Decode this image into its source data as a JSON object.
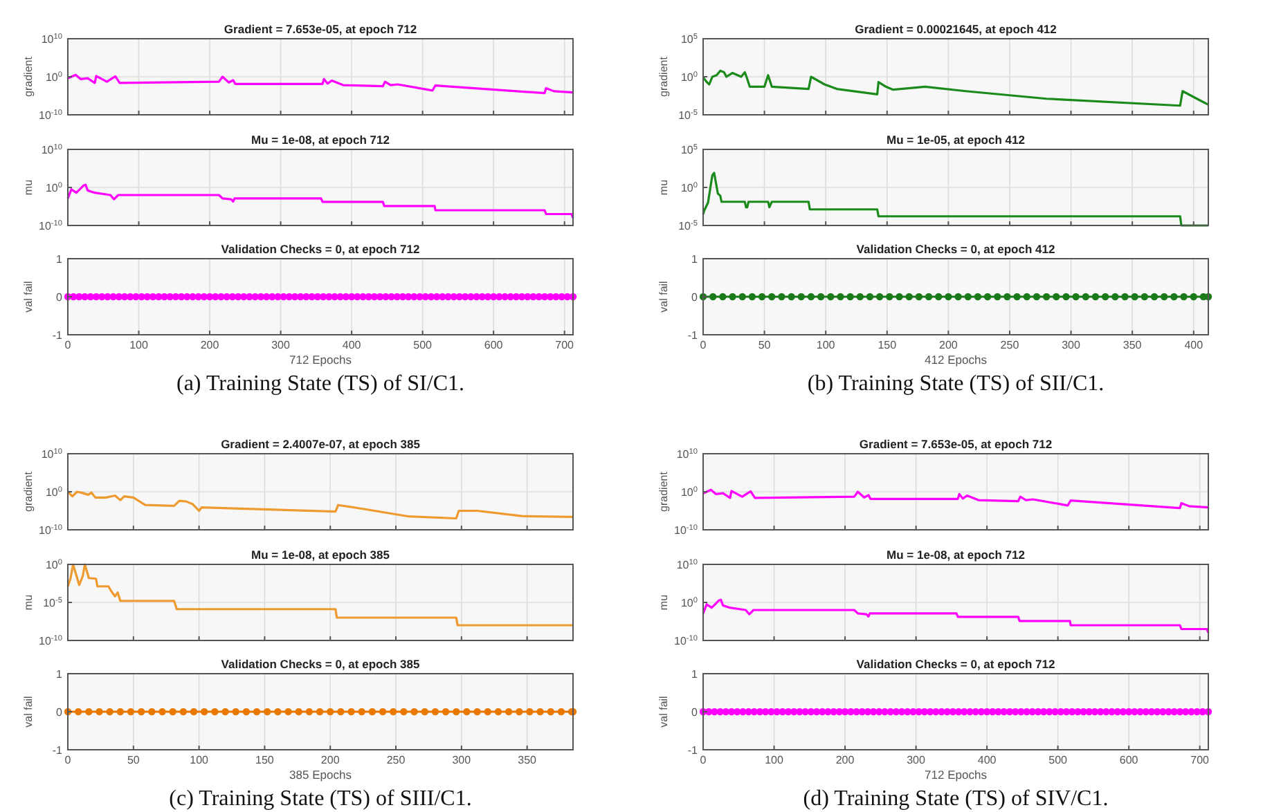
{
  "chart_data": [
    {
      "type": "line",
      "title": "Gradient = 7.653e-05, at epoch 712",
      "ylabel": "gradient",
      "log": true,
      "grid": true,
      "tick_labels": "y",
      "xlim": [
        0,
        712
      ],
      "xticks": [
        0,
        100,
        200,
        300,
        400,
        500,
        600,
        700
      ],
      "ylim": [
        1e-10,
        10000000000.0
      ],
      "yticks": [
        {
          "value": 1e-10,
          "label": "10$^{-10}$"
        },
        {
          "value": 1,
          "label": "10$^{0}$"
        },
        {
          "value": 10000000000.0,
          "label": "10$^{10}$"
        }
      ],
      "x": [
        0,
        11,
        18,
        28,
        38,
        40,
        55,
        67,
        73,
        213,
        218,
        227,
        233,
        236,
        359,
        361,
        366,
        372,
        388,
        444,
        447,
        455,
        465,
        514,
        518,
        672,
        674,
        685,
        712
      ],
      "series": [
        {
          "color": "#ff00ff",
          "values": [
            0.4,
            3.2,
            0.25,
            0.4,
            0.025,
            1.6,
            0.05,
            1.3,
            0.025,
            0.05,
            1,
            0.032,
            0.13,
            0.013,
            0.013,
            0.25,
            0.016,
            0.1,
            0.0063,
            0.0032,
            0.05,
            0.0063,
            0.01,
            0.00025,
            0.005,
            5e-05,
            0.001,
            0.00016,
            7.653e-05
          ]
        }
      ]
    },
    {
      "type": "line",
      "title": "Mu = 1e-08, at epoch 712",
      "ylabel": "mu",
      "log": true,
      "grid": true,
      "tick_labels": "y",
      "xlim": [
        0,
        712
      ],
      "xticks": [
        0,
        100,
        200,
        300,
        400,
        500,
        600,
        700
      ],
      "ylim": [
        1e-10,
        10000000000.0
      ],
      "yticks": [
        {
          "value": 1e-10,
          "label": "10$^{-10}$"
        },
        {
          "value": 1,
          "label": "10$^{0}$"
        },
        {
          "value": 10000000000.0,
          "label": "10$^{10}$"
        }
      ],
      "x": [
        0,
        5,
        12,
        18,
        22,
        25,
        28,
        38,
        60,
        65,
        71,
        213,
        218,
        230,
        233,
        235,
        357,
        359,
        444,
        446,
        517,
        518,
        672,
        674,
        710,
        712
      ],
      "series": [
        {
          "color": "#ff00ff",
          "values": [
            0.0013,
            0.32,
            0.04,
            0.5,
            3.2,
            5,
            0.16,
            0.04,
            0.01,
            0.0008,
            0.01,
            0.01,
            0.0013,
            0.0008,
            0.0002,
            0.0013,
            0.0013,
            0.00016,
            0.00016,
            1.3e-05,
            1.3e-05,
            1e-06,
            1e-06,
            1e-07,
            1e-07,
            1e-08
          ]
        }
      ]
    },
    {
      "type": "line",
      "title": "Validation Checks = 0, at epoch 712",
      "xlabel": "712 Epochs",
      "ylabel": "val fail",
      "grid": true,
      "marker": "circle",
      "xlim": [
        0,
        712
      ],
      "xticks": [
        0,
        100,
        200,
        300,
        400,
        500,
        600,
        700
      ],
      "ylim": [
        -1,
        1
      ],
      "yticks": [
        -1,
        0,
        1
      ],
      "annotations": [
        "(a) Training State (TS) of  SI/C1."
      ],
      "x": [
        0,
        8,
        16,
        24,
        32,
        40,
        48,
        56,
        64,
        72,
        80,
        88,
        96,
        104,
        112,
        120,
        128,
        136,
        144,
        152,
        160,
        168,
        176,
        184,
        192,
        200,
        208,
        216,
        224,
        232,
        240,
        248,
        256,
        264,
        272,
        280,
        288,
        296,
        304,
        312,
        320,
        328,
        336,
        344,
        352,
        360,
        368,
        376,
        384,
        392,
        400,
        408,
        416,
        424,
        432,
        440,
        448,
        456,
        464,
        472,
        480,
        488,
        496,
        504,
        512,
        520,
        528,
        536,
        544,
        552,
        560,
        568,
        576,
        584,
        592,
        600,
        608,
        616,
        624,
        632,
        640,
        648,
        656,
        664,
        672,
        680,
        688,
        696,
        704,
        712
      ],
      "series": [
        {
          "color": "#ff00ff",
          "values": [
            0,
            0,
            0,
            0,
            0,
            0,
            0,
            0,
            0,
            0,
            0,
            0,
            0,
            0,
            0,
            0,
            0,
            0,
            0,
            0,
            0,
            0,
            0,
            0,
            0,
            0,
            0,
            0,
            0,
            0,
            0,
            0,
            0,
            0,
            0,
            0,
            0,
            0,
            0,
            0,
            0,
            0,
            0,
            0,
            0,
            0,
            0,
            0,
            0,
            0,
            0,
            0,
            0,
            0,
            0,
            0,
            0,
            0,
            0,
            0,
            0,
            0,
            0,
            0,
            0,
            0,
            0,
            0,
            0,
            0,
            0,
            0,
            0,
            0,
            0,
            0,
            0,
            0,
            0,
            0,
            0,
            0,
            0,
            0,
            0,
            0,
            0,
            0,
            0,
            0
          ]
        }
      ]
    },
    {
      "type": "line",
      "title": "Gradient = 0.00021645, at epoch 412",
      "ylabel": "gradient",
      "log": true,
      "grid": true,
      "tick_labels": "y",
      "xlim": [
        0,
        412
      ],
      "xticks": [
        0,
        50,
        100,
        150,
        200,
        250,
        300,
        350,
        400
      ],
      "ylim": [
        1e-05,
        100000.0
      ],
      "yticks": [
        {
          "value": 1e-05,
          "label": "10$^{-5}$"
        },
        {
          "value": 1,
          "label": "10$^{0}$"
        },
        {
          "value": 100000.0,
          "label": "10$^{5}$"
        }
      ],
      "x": [
        0,
        3,
        5,
        7.5,
        11,
        14,
        17,
        19,
        24,
        31,
        34,
        36,
        38,
        50,
        53,
        56,
        86,
        88,
        99,
        109,
        142,
        143,
        149,
        155,
        181,
        214,
        280,
        389,
        391,
        404,
        412
      ],
      "series": [
        {
          "color": "#1a8a1a",
          "values": [
            0.8,
            0.2,
            0.1,
            1,
            1.6,
            6.3,
            4,
            1,
            3.2,
            1,
            4,
            0.5,
            0.05,
            0.05,
            1.6,
            0.05,
            0.025,
            1,
            0.1,
            0.025,
            0.005,
            0.2,
            0.05,
            0.02,
            0.05,
            0.013,
            0.0013,
            0.00016,
            0.013,
            0.001,
            0.00021645
          ]
        }
      ]
    },
    {
      "type": "line",
      "title": "Mu = 1e-05, at epoch 412",
      "ylabel": "mu",
      "log": true,
      "grid": true,
      "tick_labels": "y",
      "xlim": [
        0,
        412
      ],
      "xticks": [
        0,
        50,
        100,
        150,
        200,
        250,
        300,
        350,
        400
      ],
      "ylim": [
        1e-05,
        100000.0
      ],
      "yticks": [
        {
          "value": 1e-05,
          "label": "10$^{-5}$"
        },
        {
          "value": 1,
          "label": "10$^{0}$"
        },
        {
          "value": 100000.0,
          "label": "10$^{5}$"
        }
      ],
      "x": [
        0,
        1,
        4,
        7.5,
        9,
        12,
        14,
        15,
        34,
        35,
        36,
        37,
        53,
        54,
        56,
        86,
        87,
        142,
        143,
        389,
        390,
        412
      ],
      "series": [
        {
          "color": "#1a8a1a",
          "values": [
            0.0003,
            0.001,
            0.01,
            40,
            80,
            0.16,
            0.08,
            0.013,
            0.013,
            0.0025,
            0.0025,
            0.013,
            0.013,
            0.0025,
            0.013,
            0.013,
            0.0013,
            0.0013,
            0.00016,
            0.00016,
            1e-05,
            1e-05
          ]
        }
      ]
    },
    {
      "type": "line",
      "title": "Validation Checks = 0, at epoch 412",
      "xlabel": "412 Epochs",
      "ylabel": "val fail",
      "grid": true,
      "marker": "circle",
      "xlim": [
        0,
        412
      ],
      "xticks": [
        0,
        50,
        100,
        150,
        200,
        250,
        300,
        350,
        400
      ],
      "ylim": [
        -1,
        1
      ],
      "yticks": [
        -1,
        0,
        1
      ],
      "annotations": [
        "(b) Training State (TS) of  SII/C1."
      ],
      "x": [
        0,
        8,
        16,
        24,
        32,
        40,
        48,
        56,
        64,
        72,
        80,
        88,
        96,
        104,
        112,
        120,
        128,
        136,
        144,
        152,
        160,
        168,
        176,
        184,
        192,
        200,
        208,
        216,
        224,
        232,
        240,
        248,
        256,
        264,
        272,
        280,
        288,
        296,
        304,
        312,
        320,
        328,
        336,
        344,
        352,
        360,
        368,
        376,
        384,
        392,
        400,
        408,
        412
      ],
      "series": [
        {
          "color": "#1a7a1a",
          "values": [
            0,
            0,
            0,
            0,
            0,
            0,
            0,
            0,
            0,
            0,
            0,
            0,
            0,
            0,
            0,
            0,
            0,
            0,
            0,
            0,
            0,
            0,
            0,
            0,
            0,
            0,
            0,
            0,
            0,
            0,
            0,
            0,
            0,
            0,
            0,
            0,
            0,
            0,
            0,
            0,
            0,
            0,
            0,
            0,
            0,
            0,
            0,
            0,
            0,
            0,
            0,
            0,
            0
          ]
        }
      ]
    },
    {
      "type": "line",
      "title": "Gradient = 2.4007e-07, at epoch 385",
      "ylabel": "gradient",
      "log": true,
      "grid": true,
      "tick_labels": "y",
      "xlim": [
        0,
        385
      ],
      "xticks": [
        0,
        50,
        100,
        150,
        200,
        250,
        300,
        350
      ],
      "ylim": [
        1e-10,
        10000000000.0
      ],
      "yticks": [
        {
          "value": 1e-10,
          "label": "10$^{-10}$"
        },
        {
          "value": 1,
          "label": "10$^{0}$"
        },
        {
          "value": 10000000000.0,
          "label": "10$^{10}$"
        }
      ],
      "x": [
        0,
        3.5,
        7,
        10,
        15.6,
        18,
        21,
        29,
        36,
        40,
        43,
        50,
        59,
        81,
        85,
        90,
        95,
        100,
        102,
        204,
        206,
        225,
        260,
        296,
        298,
        312,
        346,
        385
      ],
      "series": [
        {
          "color": "#ee9a2e",
          "values": [
            1,
            0.063,
            1,
            0.63,
            0.16,
            0.6,
            0.03,
            0.03,
            0.1,
            0.0063,
            0.063,
            0.03,
            0.00032,
            0.0002,
            0.004,
            0.003,
            0.0006,
            1e-05,
            8e-05,
            6.3e-06,
            0.00032,
            3.2e-05,
            3.2e-07,
            1e-07,
            1e-05,
            1e-05,
            4e-07,
            2.4007e-07
          ]
        }
      ]
    },
    {
      "type": "line",
      "title": "Mu = 1e-08, at epoch 385",
      "ylabel": "mu",
      "log": true,
      "grid": true,
      "tick_labels": "y",
      "xlim": [
        0,
        385
      ],
      "xticks": [
        0,
        50,
        100,
        150,
        200,
        250,
        300,
        350
      ],
      "ylim": [
        1e-10,
        1
      ],
      "yticks": [
        {
          "value": 1e-10,
          "label": "10$^{-10}$"
        },
        {
          "value": 1e-05,
          "label": "10$^{-5}$"
        },
        {
          "value": 1,
          "label": "10$^{0}$"
        }
      ],
      "x": [
        0,
        2,
        4,
        8.7,
        11.4,
        13,
        16,
        21.5,
        22.5,
        31,
        33,
        36,
        38,
        40,
        81,
        83,
        204,
        205,
        296,
        297,
        385
      ],
      "series": [
        {
          "color": "#ee9a2e",
          "values": [
            0.0013,
            0.013,
            1,
            0.002,
            0.03,
            1,
            0.016,
            0.013,
            0.0013,
            0.0013,
            0.00032,
            6.3e-05,
            0.0002,
            1.6e-05,
            1.6e-05,
            1.3e-06,
            1.3e-06,
            1e-07,
            1e-07,
            1e-08,
            1e-08
          ]
        }
      ]
    },
    {
      "type": "line",
      "title": "Validation Checks = 0, at epoch 385",
      "xlabel": "385 Epochs",
      "ylabel": "val fail",
      "grid": true,
      "marker": "circle",
      "xlim": [
        0,
        385
      ],
      "xticks": [
        0,
        50,
        100,
        150,
        200,
        250,
        300,
        350
      ],
      "ylim": [
        -1,
        1
      ],
      "yticks": [
        -1,
        0,
        1
      ],
      "annotations": [
        "(c) Training State (TS) of  SIII/C1."
      ],
      "x": [
        0,
        8,
        16,
        24,
        32,
        40,
        48,
        56,
        64,
        72,
        80,
        88,
        96,
        104,
        112,
        120,
        128,
        136,
        144,
        152,
        160,
        168,
        176,
        184,
        192,
        200,
        208,
        216,
        224,
        232,
        240,
        248,
        256,
        264,
        272,
        280,
        288,
        296,
        304,
        312,
        320,
        328,
        336,
        344,
        352,
        360,
        368,
        376,
        384,
        385
      ],
      "series": [
        {
          "color": "#e87800",
          "values": [
            0,
            0,
            0,
            0,
            0,
            0,
            0,
            0,
            0,
            0,
            0,
            0,
            0,
            0,
            0,
            0,
            0,
            0,
            0,
            0,
            0,
            0,
            0,
            0,
            0,
            0,
            0,
            0,
            0,
            0,
            0,
            0,
            0,
            0,
            0,
            0,
            0,
            0,
            0,
            0,
            0,
            0,
            0,
            0,
            0,
            0,
            0,
            0,
            0,
            0
          ]
        }
      ]
    },
    {
      "type": "line",
      "title": "Gradient = 7.653e-05, at epoch 712",
      "ylabel": "gradient",
      "log": true,
      "grid": true,
      "tick_labels": "y",
      "xlim": [
        0,
        712
      ],
      "xticks": [
        0,
        100,
        200,
        300,
        400,
        500,
        600,
        700
      ],
      "ylim": [
        1e-10,
        10000000000.0
      ],
      "yticks": [
        {
          "value": 1e-10,
          "label": "10$^{-10}$"
        },
        {
          "value": 1,
          "label": "10$^{0}$"
        },
        {
          "value": 10000000000.0,
          "label": "10$^{10}$"
        }
      ],
      "x": [
        0,
        11,
        18,
        28,
        38,
        40,
        55,
        67,
        73,
        213,
        218,
        227,
        233,
        236,
        359,
        361,
        366,
        372,
        388,
        444,
        447,
        455,
        465,
        514,
        518,
        672,
        674,
        685,
        712
      ],
      "series": [
        {
          "color": "#ff00ff",
          "values": [
            0.4,
            3.2,
            0.25,
            0.4,
            0.025,
            1.6,
            0.05,
            1.3,
            0.025,
            0.05,
            1,
            0.032,
            0.13,
            0.013,
            0.013,
            0.25,
            0.016,
            0.1,
            0.0063,
            0.0032,
            0.05,
            0.0063,
            0.01,
            0.00025,
            0.005,
            5e-05,
            0.001,
            0.00016,
            7.653e-05
          ]
        }
      ]
    },
    {
      "type": "line",
      "title": "Mu = 1e-08, at epoch 712",
      "ylabel": "mu",
      "log": true,
      "grid": true,
      "tick_labels": "y",
      "xlim": [
        0,
        712
      ],
      "xticks": [
        0,
        100,
        200,
        300,
        400,
        500,
        600,
        700
      ],
      "ylim": [
        1e-10,
        10000000000.0
      ],
      "yticks": [
        {
          "value": 1e-10,
          "label": "10$^{-10}$"
        },
        {
          "value": 1,
          "label": "10$^{0}$"
        },
        {
          "value": 10000000000.0,
          "label": "10$^{10}$"
        }
      ],
      "x": [
        0,
        5,
        12,
        18,
        22,
        25,
        28,
        38,
        60,
        65,
        71,
        213,
        218,
        230,
        233,
        235,
        357,
        359,
        444,
        446,
        517,
        518,
        672,
        674,
        710,
        712
      ],
      "series": [
        {
          "color": "#ff00ff",
          "values": [
            0.0013,
            0.32,
            0.04,
            0.5,
            3.2,
            5,
            0.16,
            0.04,
            0.01,
            0.0008,
            0.01,
            0.01,
            0.0013,
            0.0008,
            0.0002,
            0.0013,
            0.0013,
            0.00016,
            0.00016,
            1.3e-05,
            1.3e-05,
            1e-06,
            1e-06,
            1e-07,
            1e-07,
            1e-08
          ]
        }
      ]
    },
    {
      "type": "line",
      "title": "Validation Checks = 0, at epoch 712",
      "xlabel": "712 Epochs",
      "ylabel": "val fail",
      "grid": true,
      "marker": "circle",
      "xlim": [
        0,
        712
      ],
      "xticks": [
        0,
        100,
        200,
        300,
        400,
        500,
        600,
        700
      ],
      "ylim": [
        -1,
        1
      ],
      "yticks": [
        -1,
        0,
        1
      ],
      "annotations": [
        "(d) Training State (TS) of  SIV/C1."
      ],
      "x": [
        0,
        8,
        16,
        24,
        32,
        40,
        48,
        56,
        64,
        72,
        80,
        88,
        96,
        104,
        112,
        120,
        128,
        136,
        144,
        152,
        160,
        168,
        176,
        184,
        192,
        200,
        208,
        216,
        224,
        232,
        240,
        248,
        256,
        264,
        272,
        280,
        288,
        296,
        304,
        312,
        320,
        328,
        336,
        344,
        352,
        360,
        368,
        376,
        384,
        392,
        400,
        408,
        416,
        424,
        432,
        440,
        448,
        456,
        464,
        472,
        480,
        488,
        496,
        504,
        512,
        520,
        528,
        536,
        544,
        552,
        560,
        568,
        576,
        584,
        592,
        600,
        608,
        616,
        624,
        632,
        640,
        648,
        656,
        664,
        672,
        680,
        688,
        696,
        704,
        712
      ],
      "series": [
        {
          "color": "#ff00ff",
          "values": [
            0,
            0,
            0,
            0,
            0,
            0,
            0,
            0,
            0,
            0,
            0,
            0,
            0,
            0,
            0,
            0,
            0,
            0,
            0,
            0,
            0,
            0,
            0,
            0,
            0,
            0,
            0,
            0,
            0,
            0,
            0,
            0,
            0,
            0,
            0,
            0,
            0,
            0,
            0,
            0,
            0,
            0,
            0,
            0,
            0,
            0,
            0,
            0,
            0,
            0,
            0,
            0,
            0,
            0,
            0,
            0,
            0,
            0,
            0,
            0,
            0,
            0,
            0,
            0,
            0,
            0,
            0,
            0,
            0,
            0,
            0,
            0,
            0,
            0,
            0,
            0,
            0,
            0,
            0,
            0,
            0,
            0,
            0,
            0,
            0,
            0,
            0,
            0,
            0,
            0
          ]
        }
      ]
    }
  ]
}
